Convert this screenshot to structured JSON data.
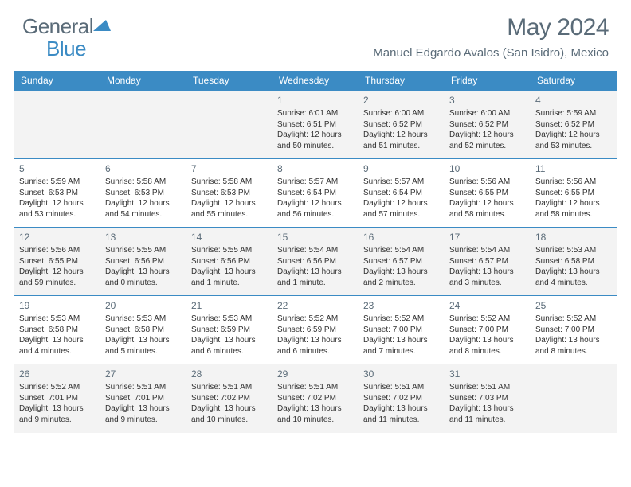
{
  "brand": {
    "part1": "General",
    "part2": "Blue"
  },
  "title": "May 2024",
  "location": "Manuel Edgardo Avalos (San Isidro), Mexico",
  "colors": {
    "header_bg": "#3b8bc4",
    "text_muted": "#5a6b78",
    "row_alt": "#f3f3f3",
    "border": "#3b8bc4"
  },
  "weekdays": [
    "Sunday",
    "Monday",
    "Tuesday",
    "Wednesday",
    "Thursday",
    "Friday",
    "Saturday"
  ],
  "weeks": [
    [
      null,
      null,
      null,
      {
        "n": "1",
        "sr": "6:01 AM",
        "ss": "6:51 PM",
        "dl": "12 hours and 50 minutes."
      },
      {
        "n": "2",
        "sr": "6:00 AM",
        "ss": "6:52 PM",
        "dl": "12 hours and 51 minutes."
      },
      {
        "n": "3",
        "sr": "6:00 AM",
        "ss": "6:52 PM",
        "dl": "12 hours and 52 minutes."
      },
      {
        "n": "4",
        "sr": "5:59 AM",
        "ss": "6:52 PM",
        "dl": "12 hours and 53 minutes."
      }
    ],
    [
      {
        "n": "5",
        "sr": "5:59 AM",
        "ss": "6:53 PM",
        "dl": "12 hours and 53 minutes."
      },
      {
        "n": "6",
        "sr": "5:58 AM",
        "ss": "6:53 PM",
        "dl": "12 hours and 54 minutes."
      },
      {
        "n": "7",
        "sr": "5:58 AM",
        "ss": "6:53 PM",
        "dl": "12 hours and 55 minutes."
      },
      {
        "n": "8",
        "sr": "5:57 AM",
        "ss": "6:54 PM",
        "dl": "12 hours and 56 minutes."
      },
      {
        "n": "9",
        "sr": "5:57 AM",
        "ss": "6:54 PM",
        "dl": "12 hours and 57 minutes."
      },
      {
        "n": "10",
        "sr": "5:56 AM",
        "ss": "6:55 PM",
        "dl": "12 hours and 58 minutes."
      },
      {
        "n": "11",
        "sr": "5:56 AM",
        "ss": "6:55 PM",
        "dl": "12 hours and 58 minutes."
      }
    ],
    [
      {
        "n": "12",
        "sr": "5:56 AM",
        "ss": "6:55 PM",
        "dl": "12 hours and 59 minutes."
      },
      {
        "n": "13",
        "sr": "5:55 AM",
        "ss": "6:56 PM",
        "dl": "13 hours and 0 minutes."
      },
      {
        "n": "14",
        "sr": "5:55 AM",
        "ss": "6:56 PM",
        "dl": "13 hours and 1 minute."
      },
      {
        "n": "15",
        "sr": "5:54 AM",
        "ss": "6:56 PM",
        "dl": "13 hours and 1 minute."
      },
      {
        "n": "16",
        "sr": "5:54 AM",
        "ss": "6:57 PM",
        "dl": "13 hours and 2 minutes."
      },
      {
        "n": "17",
        "sr": "5:54 AM",
        "ss": "6:57 PM",
        "dl": "13 hours and 3 minutes."
      },
      {
        "n": "18",
        "sr": "5:53 AM",
        "ss": "6:58 PM",
        "dl": "13 hours and 4 minutes."
      }
    ],
    [
      {
        "n": "19",
        "sr": "5:53 AM",
        "ss": "6:58 PM",
        "dl": "13 hours and 4 minutes."
      },
      {
        "n": "20",
        "sr": "5:53 AM",
        "ss": "6:58 PM",
        "dl": "13 hours and 5 minutes."
      },
      {
        "n": "21",
        "sr": "5:53 AM",
        "ss": "6:59 PM",
        "dl": "13 hours and 6 minutes."
      },
      {
        "n": "22",
        "sr": "5:52 AM",
        "ss": "6:59 PM",
        "dl": "13 hours and 6 minutes."
      },
      {
        "n": "23",
        "sr": "5:52 AM",
        "ss": "7:00 PM",
        "dl": "13 hours and 7 minutes."
      },
      {
        "n": "24",
        "sr": "5:52 AM",
        "ss": "7:00 PM",
        "dl": "13 hours and 8 minutes."
      },
      {
        "n": "25",
        "sr": "5:52 AM",
        "ss": "7:00 PM",
        "dl": "13 hours and 8 minutes."
      }
    ],
    [
      {
        "n": "26",
        "sr": "5:52 AM",
        "ss": "7:01 PM",
        "dl": "13 hours and 9 minutes."
      },
      {
        "n": "27",
        "sr": "5:51 AM",
        "ss": "7:01 PM",
        "dl": "13 hours and 9 minutes."
      },
      {
        "n": "28",
        "sr": "5:51 AM",
        "ss": "7:02 PM",
        "dl": "13 hours and 10 minutes."
      },
      {
        "n": "29",
        "sr": "5:51 AM",
        "ss": "7:02 PM",
        "dl": "13 hours and 10 minutes."
      },
      {
        "n": "30",
        "sr": "5:51 AM",
        "ss": "7:02 PM",
        "dl": "13 hours and 11 minutes."
      },
      {
        "n": "31",
        "sr": "5:51 AM",
        "ss": "7:03 PM",
        "dl": "13 hours and 11 minutes."
      },
      null
    ]
  ],
  "labels": {
    "sunrise": "Sunrise: ",
    "sunset": "Sunset: ",
    "daylight": "Daylight: "
  }
}
